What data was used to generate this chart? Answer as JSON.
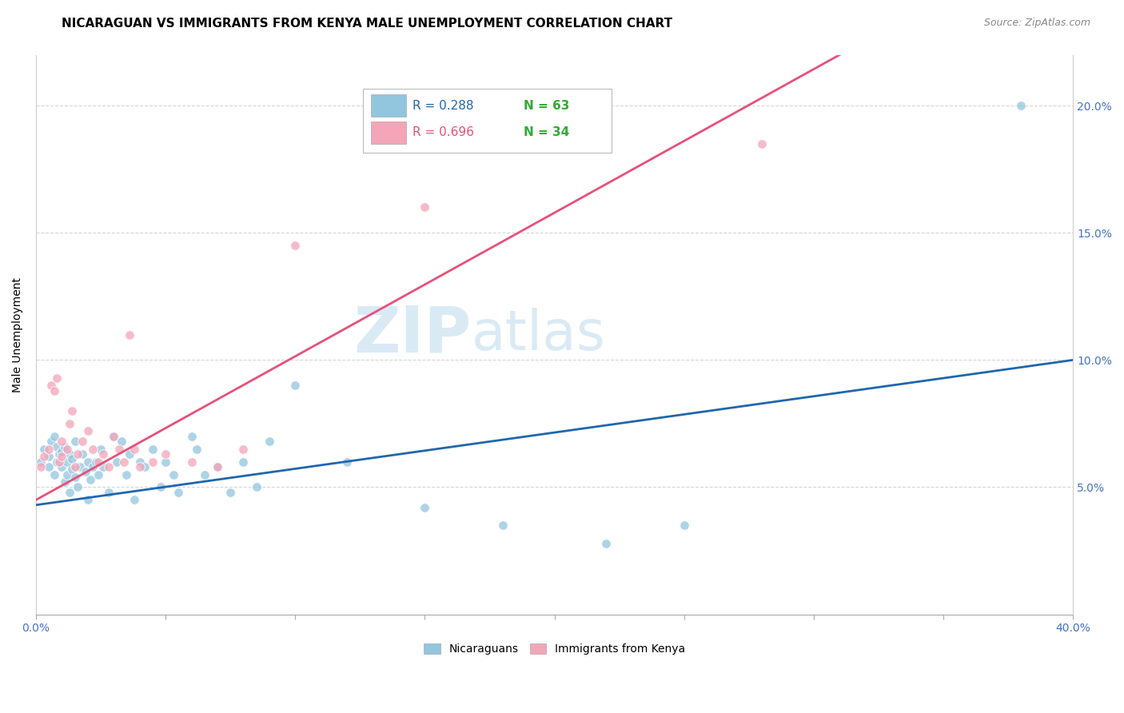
{
  "title": "NICARAGUAN VS IMMIGRANTS FROM KENYA MALE UNEMPLOYMENT CORRELATION CHART",
  "source": "Source: ZipAtlas.com",
  "ylabel": "Male Unemployment",
  "xlim": [
    0.0,
    0.4
  ],
  "ylim": [
    0.0,
    0.22
  ],
  "blue_color": "#92c5de",
  "pink_color": "#f4a5b8",
  "blue_line_color": "#2166ac",
  "pink_line_color": "#e8507a",
  "n_color": "#33aa33",
  "tick_color": "#4472c4",
  "grid_color": "#cccccc",
  "background_color": "#ffffff",
  "watermark_color": "#daeaf5",
  "title_fontsize": 11,
  "source_fontsize": 9,
  "label_fontsize": 10,
  "tick_fontsize": 10,
  "watermark_zip_fontsize": 56,
  "watermark_atlas_fontsize": 56,
  "blue_scatter_x": [
    0.002,
    0.003,
    0.005,
    0.005,
    0.006,
    0.007,
    0.007,
    0.008,
    0.008,
    0.009,
    0.01,
    0.01,
    0.011,
    0.011,
    0.012,
    0.012,
    0.013,
    0.013,
    0.014,
    0.014,
    0.015,
    0.015,
    0.016,
    0.017,
    0.018,
    0.019,
    0.02,
    0.02,
    0.021,
    0.022,
    0.023,
    0.024,
    0.025,
    0.026,
    0.028,
    0.03,
    0.031,
    0.033,
    0.035,
    0.036,
    0.038,
    0.04,
    0.042,
    0.045,
    0.048,
    0.05,
    0.053,
    0.055,
    0.06,
    0.062,
    0.065,
    0.07,
    0.075,
    0.08,
    0.085,
    0.09,
    0.1,
    0.12,
    0.15,
    0.18,
    0.22,
    0.25,
    0.38
  ],
  "blue_scatter_y": [
    0.06,
    0.065,
    0.062,
    0.058,
    0.068,
    0.055,
    0.07,
    0.06,
    0.066,
    0.063,
    0.058,
    0.064,
    0.052,
    0.066,
    0.055,
    0.06,
    0.048,
    0.063,
    0.057,
    0.061,
    0.054,
    0.068,
    0.05,
    0.058,
    0.063,
    0.056,
    0.045,
    0.06,
    0.053,
    0.058,
    0.06,
    0.055,
    0.065,
    0.058,
    0.048,
    0.07,
    0.06,
    0.068,
    0.055,
    0.063,
    0.045,
    0.06,
    0.058,
    0.065,
    0.05,
    0.06,
    0.055,
    0.048,
    0.07,
    0.065,
    0.055,
    0.058,
    0.048,
    0.06,
    0.05,
    0.068,
    0.09,
    0.06,
    0.042,
    0.035,
    0.028,
    0.035,
    0.2
  ],
  "pink_scatter_x": [
    0.002,
    0.003,
    0.005,
    0.006,
    0.007,
    0.008,
    0.009,
    0.01,
    0.01,
    0.012,
    0.013,
    0.014,
    0.015,
    0.016,
    0.018,
    0.02,
    0.022,
    0.024,
    0.026,
    0.028,
    0.03,
    0.032,
    0.034,
    0.036,
    0.038,
    0.04,
    0.045,
    0.05,
    0.06,
    0.07,
    0.08,
    0.1,
    0.15,
    0.28
  ],
  "pink_scatter_y": [
    0.058,
    0.062,
    0.065,
    0.09,
    0.088,
    0.093,
    0.06,
    0.062,
    0.068,
    0.065,
    0.075,
    0.08,
    0.058,
    0.063,
    0.068,
    0.072,
    0.065,
    0.06,
    0.063,
    0.058,
    0.07,
    0.065,
    0.06,
    0.11,
    0.065,
    0.058,
    0.06,
    0.063,
    0.06,
    0.058,
    0.065,
    0.145,
    0.16,
    0.185
  ],
  "blue_line_x0": 0.0,
  "blue_line_x1": 0.4,
  "blue_line_y0": 0.043,
  "blue_line_y1": 0.1,
  "pink_line_x0": 0.0,
  "pink_line_x1": 0.31,
  "pink_line_y0": 0.045,
  "pink_line_y1": 0.22
}
